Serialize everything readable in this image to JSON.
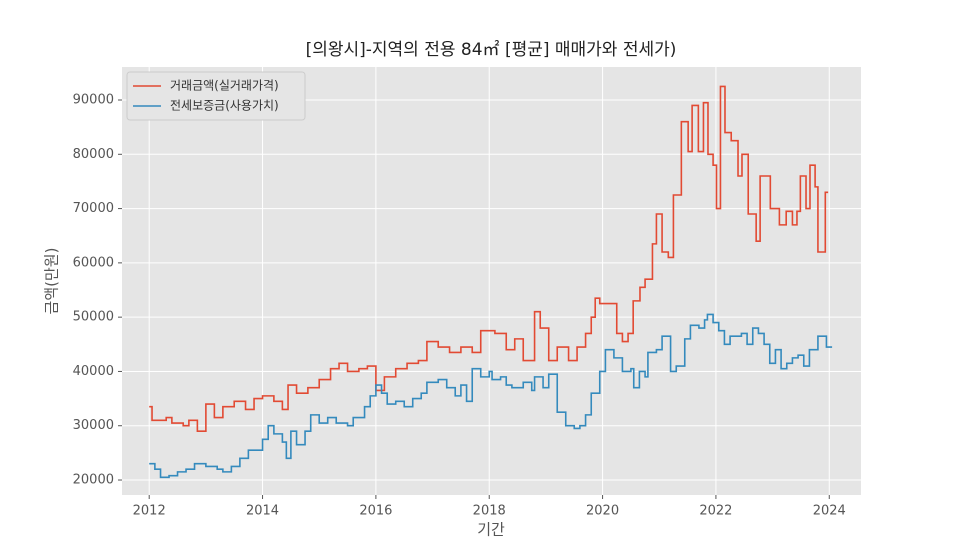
{
  "chart_data": {
    "type": "line",
    "step": true,
    "title": "[의왕시]-지역의 전용 84㎡ [평균] 매매가와 전세가)",
    "xlabel": "기간",
    "ylabel": "금액(만원)",
    "xlim": [
      2011.52,
      2024.56
    ],
    "ylim": [
      17240,
      96080
    ],
    "xticks": [
      2012,
      2014,
      2016,
      2018,
      2020,
      2022,
      2024
    ],
    "yticks": [
      20000,
      30000,
      40000,
      50000,
      60000,
      70000,
      80000,
      90000
    ],
    "grid": true,
    "legend": "upper left",
    "series": [
      {
        "name": "거래금액(실거래가격)",
        "color": "#e24a33",
        "x": [
          2012.0,
          2012.05,
          2012.3,
          2012.4,
          2012.6,
          2012.7,
          2012.85,
          2013.0,
          2013.15,
          2013.3,
          2013.5,
          2013.7,
          2013.85,
          2014.0,
          2014.2,
          2014.35,
          2014.45,
          2014.6,
          2014.8,
          2015.0,
          2015.2,
          2015.35,
          2015.5,
          2015.7,
          2015.85,
          2016.0,
          2016.15,
          2016.35,
          2016.55,
          2016.75,
          2016.9,
          2017.1,
          2017.3,
          2017.5,
          2017.7,
          2017.85,
          2018.1,
          2018.3,
          2018.45,
          2018.6,
          2018.8,
          2018.9,
          2019.05,
          2019.2,
          2019.4,
          2019.55,
          2019.7,
          2019.8,
          2019.87,
          2019.95,
          2020.1,
          2020.25,
          2020.35,
          2020.45,
          2020.54,
          2020.66,
          2020.75,
          2020.88,
          2020.95,
          2021.05,
          2021.16,
          2021.25,
          2021.39,
          2021.51,
          2021.58,
          2021.69,
          2021.78,
          2021.86,
          2021.95,
          2022.01,
          2022.08,
          2022.16,
          2022.27,
          2022.39,
          2022.46,
          2022.57,
          2022.71,
          2022.78,
          2022.96,
          2023.12,
          2023.24,
          2023.35,
          2023.43,
          2023.49,
          2023.59,
          2023.66,
          2023.75,
          2023.8,
          2023.93
        ],
        "values": [
          33500,
          31000,
          31500,
          30500,
          30000,
          31000,
          29000,
          34000,
          31500,
          33500,
          34500,
          33000,
          35000,
          35500,
          34500,
          33000,
          37500,
          36000,
          37000,
          38500,
          40500,
          41500,
          40000,
          40500,
          41000,
          36500,
          39000,
          40500,
          41500,
          42000,
          45500,
          44500,
          43500,
          44500,
          43500,
          47500,
          47000,
          44000,
          46000,
          42000,
          51000,
          48000,
          42000,
          44500,
          42000,
          44500,
          47000,
          50000,
          53500,
          52500,
          52500,
          47000,
          45500,
          47000,
          53000,
          55500,
          57000,
          63500,
          69000,
          62000,
          61000,
          72500,
          86000,
          80500,
          89000,
          80500,
          89500,
          80000,
          78000,
          70000,
          92500,
          84000,
          82500,
          76000,
          80000,
          69000,
          64000,
          76000,
          70000,
          67000,
          69500,
          67000,
          69500,
          76000,
          70000,
          78000,
          74000,
          62000,
          73000
        ]
      },
      {
        "name": "전세보증금(사용가치)",
        "color": "#348abd",
        "x": [
          2012.0,
          2012.1,
          2012.2,
          2012.35,
          2012.5,
          2012.65,
          2012.8,
          2013.0,
          2013.2,
          2013.3,
          2013.45,
          2013.6,
          2013.75,
          2014.0,
          2014.1,
          2014.2,
          2014.35,
          2014.42,
          2014.5,
          2014.6,
          2014.75,
          2014.85,
          2015.0,
          2015.15,
          2015.3,
          2015.5,
          2015.6,
          2015.8,
          2015.9,
          2016.0,
          2016.1,
          2016.2,
          2016.35,
          2016.5,
          2016.65,
          2016.8,
          2016.9,
          2017.1,
          2017.25,
          2017.4,
          2017.5,
          2017.6,
          2017.7,
          2017.85,
          2018.0,
          2018.05,
          2018.2,
          2018.3,
          2018.4,
          2018.6,
          2018.75,
          2018.8,
          2018.95,
          2019.05,
          2019.2,
          2019.35,
          2019.5,
          2019.6,
          2019.7,
          2019.8,
          2019.95,
          2020.05,
          2020.2,
          2020.35,
          2020.5,
          2020.55,
          2020.65,
          2020.75,
          2020.8,
          2020.95,
          2021.05,
          2021.2,
          2021.3,
          2021.45,
          2021.55,
          2021.7,
          2021.8,
          2021.85,
          2021.95,
          2022.05,
          2022.15,
          2022.25,
          2022.45,
          2022.55,
          2022.65,
          2022.75,
          2022.85,
          2022.95,
          2023.05,
          2023.15,
          2023.25,
          2023.35,
          2023.45,
          2023.55,
          2023.65,
          2023.8,
          2023.95
        ],
        "values": [
          23000,
          22000,
          20500,
          20800,
          21500,
          22000,
          23000,
          22500,
          22000,
          21500,
          22500,
          24000,
          25500,
          27500,
          30000,
          28500,
          27000,
          24000,
          29000,
          26500,
          29000,
          32000,
          30500,
          31500,
          30500,
          30000,
          31500,
          33500,
          35500,
          37500,
          36000,
          34000,
          34500,
          33500,
          35000,
          36000,
          38000,
          38500,
          37000,
          35500,
          37500,
          34500,
          40500,
          39000,
          40000,
          38500,
          39000,
          37500,
          37000,
          38000,
          36500,
          39000,
          37000,
          39500,
          32500,
          30000,
          29500,
          30000,
          32000,
          36000,
          40000,
          44000,
          42500,
          40000,
          40500,
          37000,
          40000,
          39000,
          43500,
          44000,
          46500,
          40000,
          41000,
          46000,
          48500,
          48000,
          49500,
          50500,
          49000,
          47500,
          45000,
          46500,
          47000,
          45000,
          48000,
          47000,
          45000,
          41500,
          44000,
          40500,
          41500,
          42500,
          43000,
          41000,
          44000,
          46500,
          44500
        ]
      }
    ]
  }
}
